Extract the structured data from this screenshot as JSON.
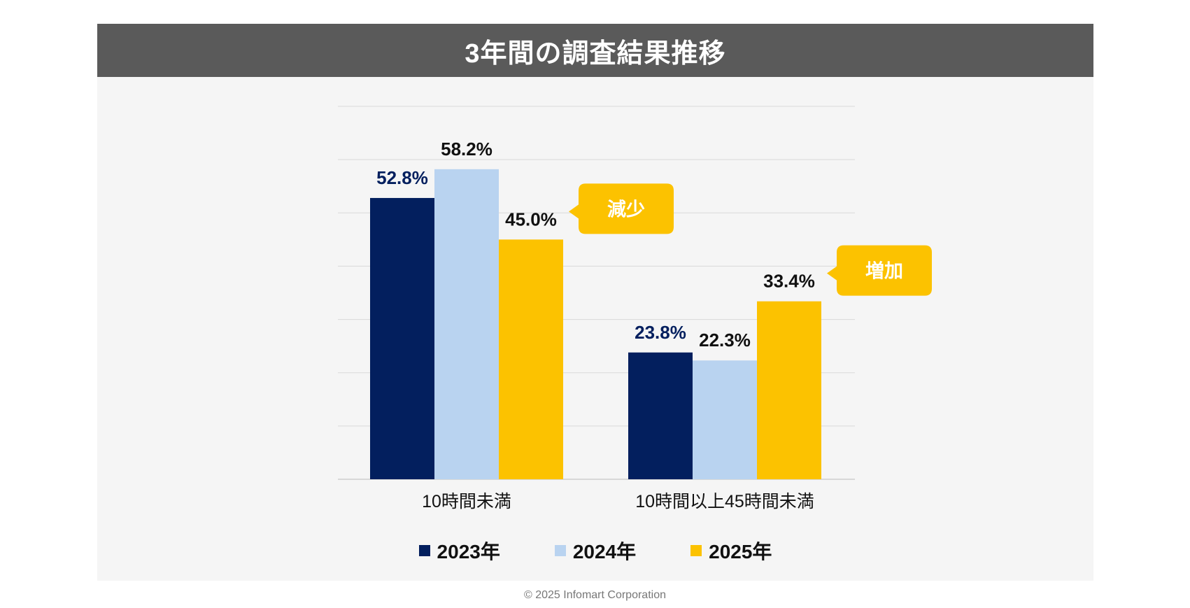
{
  "title": "3年間の調査結果推移",
  "copyright": "© 2025 Infomart Corporation",
  "colors": {
    "title_bg": "#5a5a5a",
    "panel_bg": "#f5f5f5",
    "s2023": "#031f5e",
    "s2024": "#b9d3f0",
    "s2025": "#fcc200",
    "callout": "#fcc200",
    "gridline": "#d9d9d9"
  },
  "legend": [
    {
      "label": "2023年",
      "color": "#031f5e"
    },
    {
      "label": "2024年",
      "color": "#b9d3f0"
    },
    {
      "label": "2025年",
      "color": "#fcc200"
    }
  ],
  "callouts": [
    {
      "text": "減少",
      "group": 0
    },
    {
      "text": "増加",
      "group": 1
    }
  ],
  "chart_data": {
    "type": "bar",
    "categories": [
      "10時間未満",
      "10時間以上45時間未満"
    ],
    "series": [
      {
        "name": "2023年",
        "values": [
          52.8,
          23.8
        ],
        "labels": [
          "52.8%",
          "23.8%"
        ],
        "label_color": "#031f5e"
      },
      {
        "name": "2024年",
        "values": [
          58.2,
          22.3
        ],
        "labels": [
          "58.2%",
          "22.3%"
        ],
        "label_color": "#111111"
      },
      {
        "name": "2025年",
        "values": [
          45.0,
          33.4
        ],
        "labels": [
          "45.0%",
          "33.4%"
        ],
        "label_color": "#111111"
      }
    ],
    "ylim": [
      0,
      70
    ],
    "grid": true,
    "legend_position": "bottom"
  }
}
